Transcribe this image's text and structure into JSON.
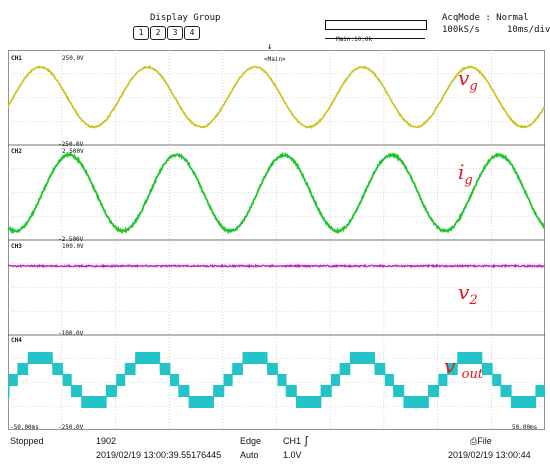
{
  "header": {
    "display_group_title": "Display Group",
    "display_group_buttons": [
      "1",
      "2",
      "3",
      "4"
    ],
    "zoom_label": "Main:10.0k",
    "acq_mode": "AcqMode : Normal",
    "acq_rate": "100kS/s",
    "time_div": "10ms/div",
    "trigger_symbol": "↓",
    "main_tag": "<Main>"
  },
  "channels": [
    {
      "id": "CH1",
      "scale_top": "250.0V",
      "scale_bottom": "-250.0V",
      "color": "#c9c21a",
      "label_main": "v",
      "label_sub": "g"
    },
    {
      "id": "CH2",
      "scale_top": "2.500V",
      "scale_bottom": "-2.500V",
      "color": "#1fc42a",
      "label_main": "i",
      "label_sub": "g"
    },
    {
      "id": "CH3",
      "scale_top": "100.0V",
      "scale_bottom": "-100.0V",
      "color": "#c21cc0",
      "label_main": "v",
      "label_sub": "2"
    },
    {
      "id": "CH4",
      "scale_top": "",
      "scale_bottom": "-250.0V",
      "color": "#22c4c8",
      "label_main": "v",
      "label_sub": "out"
    }
  ],
  "time_axis": {
    "left": "-50.00ms",
    "right": "50.00ms"
  },
  "status": {
    "state": "Stopped",
    "count": "1902",
    "acq_time": "2019/02/19 13:00:39.55176445",
    "trigger_type": "Edge",
    "trigger_mode": "Auto",
    "trigger_source": "CH1",
    "trigger_slope": "ʃ",
    "trigger_level": "1.0V",
    "file_label": "File",
    "file_time": "2019/02/19 13:00:44"
  },
  "colors": {
    "grid": "#b8b8b8",
    "label": "#e8141c"
  }
}
